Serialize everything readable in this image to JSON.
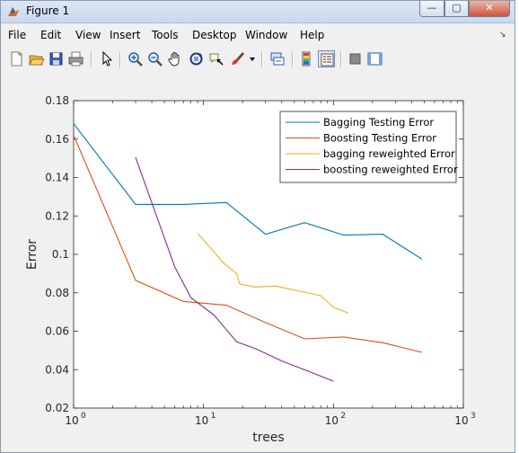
{
  "window": {
    "title": "Figure 1",
    "controls": {
      "minimize": "—",
      "maximize": "▢",
      "close": "✕"
    }
  },
  "menubar": {
    "items": [
      "File",
      "Edit",
      "View",
      "Insert",
      "Tools",
      "Desktop",
      "Window",
      "Help"
    ],
    "dock_glyph": "↘"
  },
  "toolbar": {
    "icons": [
      "new-figure-icon",
      "open-file-icon",
      "save-icon",
      "print-icon",
      "edit-plot-arrow-icon",
      "zoom-in-icon",
      "zoom-out-icon",
      "pan-hand-icon",
      "rotate-3d-icon",
      "data-cursor-icon",
      "brush-icon",
      "brush-dropdown-icon",
      "link-plot-icon",
      "insert-colorbar-icon",
      "insert-legend-icon",
      "hide-plot-tools-icon",
      "show-plot-tools-icon"
    ]
  },
  "chart_data": {
    "type": "line",
    "xscale": "log",
    "xlabel": "trees",
    "ylabel": "Error",
    "xlim": [
      1,
      1000
    ],
    "ylim": [
      0.02,
      0.18
    ],
    "xticks": [
      1,
      10,
      100,
      1000
    ],
    "xtick_labels": [
      {
        "base": "10",
        "exp": "0"
      },
      {
        "base": "10",
        "exp": "1"
      },
      {
        "base": "10",
        "exp": "2"
      },
      {
        "base": "10",
        "exp": "3"
      }
    ],
    "yticks": [
      "0.02",
      "0.04",
      "0.06",
      "0.08",
      "0.1",
      "0.12",
      "0.14",
      "0.16",
      "0.18"
    ],
    "grid": false,
    "legend_position": "top-right",
    "series": [
      {
        "name": "Bagging Testing Error",
        "color": "#0072BD",
        "x": [
          1,
          3,
          7,
          15,
          30,
          60,
          120,
          240,
          480
        ],
        "y": [
          0.168,
          0.126,
          0.126,
          0.127,
          0.1105,
          0.1165,
          0.11,
          0.1105,
          0.0975
        ]
      },
      {
        "name": "Boosting Testing Error",
        "color": "#D95319",
        "x": [
          1,
          3,
          7,
          15,
          30,
          60,
          120,
          240,
          480
        ],
        "y": [
          0.162,
          0.0865,
          0.0755,
          0.0735,
          0.0645,
          0.056,
          0.057,
          0.054,
          0.049
        ]
      },
      {
        "name": "bagging reweighted Error",
        "color": "#EDB120",
        "x": [
          9,
          12,
          14,
          18,
          19,
          25,
          36,
          80,
          100,
          130
        ],
        "y": [
          0.111,
          0.1015,
          0.096,
          0.09,
          0.0845,
          0.083,
          0.0835,
          0.0785,
          0.0725,
          0.0695
        ]
      },
      {
        "name": "boosting reweighted Error",
        "color": "#7E2F8E",
        "x": [
          3,
          6,
          8,
          12,
          18,
          25,
          40,
          65,
          100
        ],
        "y": [
          0.1505,
          0.0935,
          0.0775,
          0.0685,
          0.0545,
          0.051,
          0.0445,
          0.039,
          0.034
        ]
      }
    ]
  }
}
